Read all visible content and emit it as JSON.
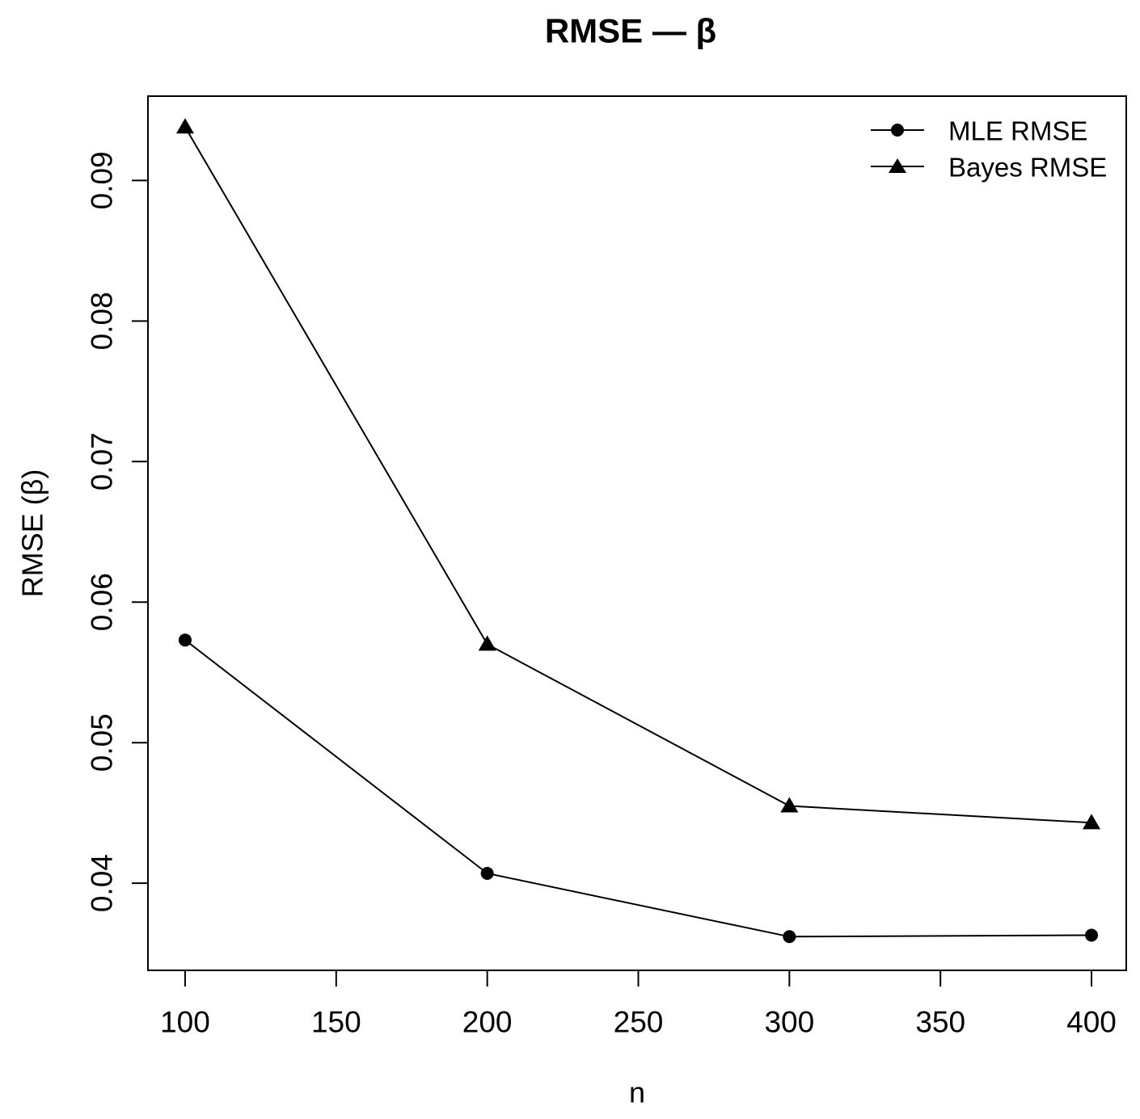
{
  "chart_data": {
    "type": "line",
    "title": "RMSE — β",
    "xlabel": "n",
    "ylabel": "RMSE (β)",
    "x": [
      100,
      200,
      300,
      400
    ],
    "series": [
      {
        "name": "MLE RMSE",
        "marker": "circle",
        "values": [
          0.0573,
          0.0407,
          0.0362,
          0.0363
        ]
      },
      {
        "name": "Bayes RMSE",
        "marker": "triangle",
        "values": [
          0.0938,
          0.057,
          0.0455,
          0.0443
        ]
      }
    ],
    "xlim": [
      87.7,
      411.5
    ],
    "ylim": [
      0.0338,
      0.096
    ],
    "x_ticks": [
      100,
      150,
      200,
      250,
      300,
      350,
      400
    ],
    "y_ticks": [
      0.04,
      0.05,
      0.06,
      0.07,
      0.08,
      0.09
    ],
    "y_tick_decimals": 2,
    "grid": false,
    "legend_position": "top-right",
    "line_color": "#000000",
    "text_color": "#000000",
    "background_color": "#ffffff"
  }
}
